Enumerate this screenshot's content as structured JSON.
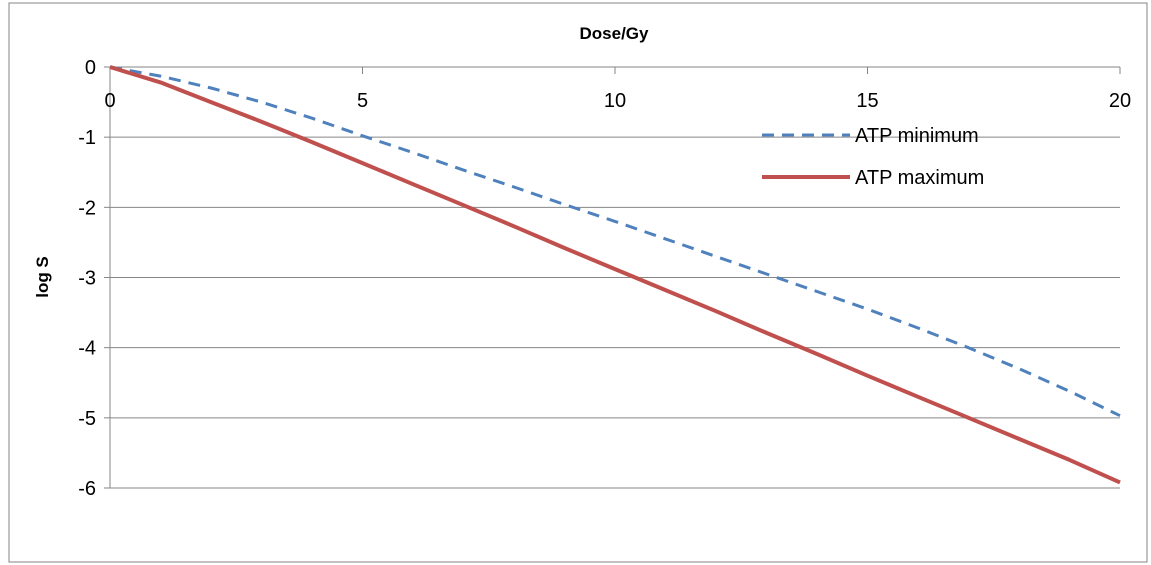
{
  "chart_data": {
    "type": "line",
    "title": "",
    "xlabel": "Dose/Gy",
    "ylabel": "log S",
    "xlim": [
      0,
      20
    ],
    "ylim": [
      -6,
      0
    ],
    "x_ticks": [
      0,
      5,
      10,
      15,
      20
    ],
    "y_ticks": [
      0,
      -1,
      -2,
      -3,
      -4,
      -5,
      -6
    ],
    "x_axis_position": "top",
    "grid": {
      "horizontal": true,
      "vertical": false
    },
    "legend_position": "top-right",
    "series": [
      {
        "name": "ATP minimum",
        "color": "#4F81BD",
        "style": "dashed",
        "x": [
          0,
          1,
          2,
          3,
          4,
          5,
          6,
          7,
          8,
          9,
          10,
          11,
          12,
          13,
          14,
          15,
          16,
          17,
          18,
          19,
          20
        ],
        "y": [
          0,
          -0.13,
          -0.3,
          -0.5,
          -0.73,
          -0.98,
          -1.22,
          -1.47,
          -1.71,
          -1.96,
          -2.2,
          -2.45,
          -2.7,
          -2.95,
          -3.2,
          -3.45,
          -3.72,
          -4.0,
          -4.3,
          -4.62,
          -4.97
        ]
      },
      {
        "name": "ATP maximum",
        "color": "#C0504D",
        "style": "solid",
        "x": [
          0,
          1,
          2,
          3,
          4,
          5,
          6,
          7,
          8,
          9,
          10,
          11,
          12,
          13,
          14,
          15,
          16,
          17,
          18,
          19,
          20
        ],
        "y": [
          0,
          -0.22,
          -0.5,
          -0.78,
          -1.07,
          -1.37,
          -1.67,
          -1.97,
          -2.27,
          -2.58,
          -2.88,
          -3.18,
          -3.48,
          -3.79,
          -4.09,
          -4.4,
          -4.7,
          -5.0,
          -5.3,
          -5.6,
          -5.92
        ]
      }
    ]
  }
}
